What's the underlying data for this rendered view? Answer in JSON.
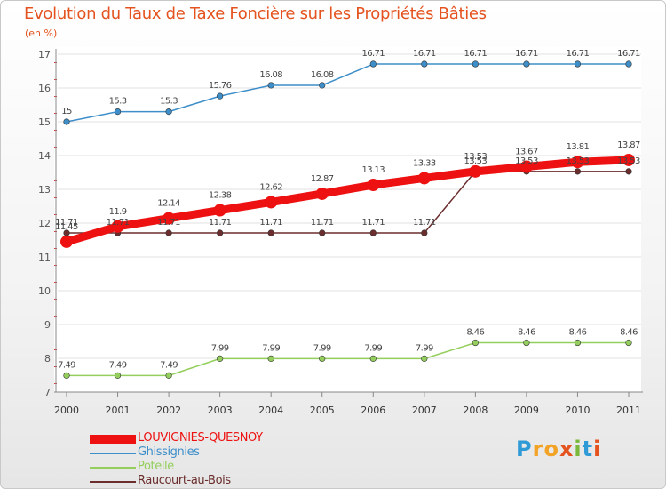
{
  "header": {
    "title": "Evolution du Taux de Taxe Foncière sur les Propriétés Bâties",
    "unit": "(en %)"
  },
  "logo": {
    "letters": [
      "P",
      "r",
      "o",
      "x",
      "i",
      "t",
      "i"
    ],
    "colors": [
      "#2e9ad6",
      "#f2a224",
      "#f2a224",
      "#e4531f",
      "#7ab93c",
      "#2e9ad6",
      "#e4531f"
    ]
  },
  "chart_data": {
    "type": "line",
    "title": "Evolution du Taux de Taxe Foncière sur les Propriétés Bâties",
    "ylabel": "(en %)",
    "xlabel": "",
    "ylim": [
      7,
      17
    ],
    "yticks": [
      "7",
      "8",
      "9",
      "10",
      "11",
      "12",
      "13",
      "14",
      "15",
      "16",
      "17"
    ],
    "x": [
      "2000",
      "2001",
      "2002",
      "2003",
      "2004",
      "2005",
      "2006",
      "2007",
      "2008",
      "2009",
      "2010",
      "2011"
    ],
    "grid": true,
    "series": [
      {
        "name": "LOUVIGNIES-QUESNOY",
        "color": "#ee1111",
        "bold": true,
        "values": [
          11.45,
          11.9,
          12.14,
          12.38,
          12.62,
          12.87,
          13.13,
          13.33,
          13.53,
          13.67,
          13.81,
          13.87
        ],
        "labels": [
          "11.45",
          "11.9",
          "12.14",
          "12.38",
          "12.62",
          "12.87",
          "13.13",
          "13.33",
          "13.53",
          "13.67",
          "13.81",
          "13.87"
        ]
      },
      {
        "name": "Ghissignies",
        "color": "#3d8ec9",
        "bold": false,
        "values": [
          15.0,
          15.3,
          15.3,
          15.76,
          16.08,
          16.08,
          16.71,
          16.71,
          16.71,
          16.71,
          16.71,
          16.71
        ],
        "labels": [
          "15",
          "15.3",
          "15.3",
          "15.76",
          "16.08",
          "16.08",
          "16.71",
          "16.71",
          "16.71",
          "16.71",
          "16.71",
          "16.71"
        ]
      },
      {
        "name": "Potelle",
        "color": "#94cf5d",
        "bold": false,
        "values": [
          7.49,
          7.49,
          7.49,
          7.99,
          7.99,
          7.99,
          7.99,
          7.99,
          8.46,
          8.46,
          8.46,
          8.46
        ],
        "labels": [
          "7.49",
          "7.49",
          "7.49",
          "7.99",
          "7.99",
          "7.99",
          "7.99",
          "7.99",
          "8.46",
          "8.46",
          "8.46",
          "8.46"
        ]
      },
      {
        "name": "Raucourt-au-Bois",
        "color": "#6b2d2d",
        "bold": false,
        "values": [
          11.71,
          11.71,
          11.71,
          11.71,
          11.71,
          11.71,
          11.71,
          11.71,
          13.53,
          13.53,
          13.53,
          13.53
        ],
        "labels": [
          "11.71",
          "11.71",
          "11.71",
          "11.71",
          "11.71",
          "11.71",
          "11.71",
          "11.71",
          "13.53",
          "13.53",
          "13.53",
          "13.53"
        ]
      }
    ]
  }
}
